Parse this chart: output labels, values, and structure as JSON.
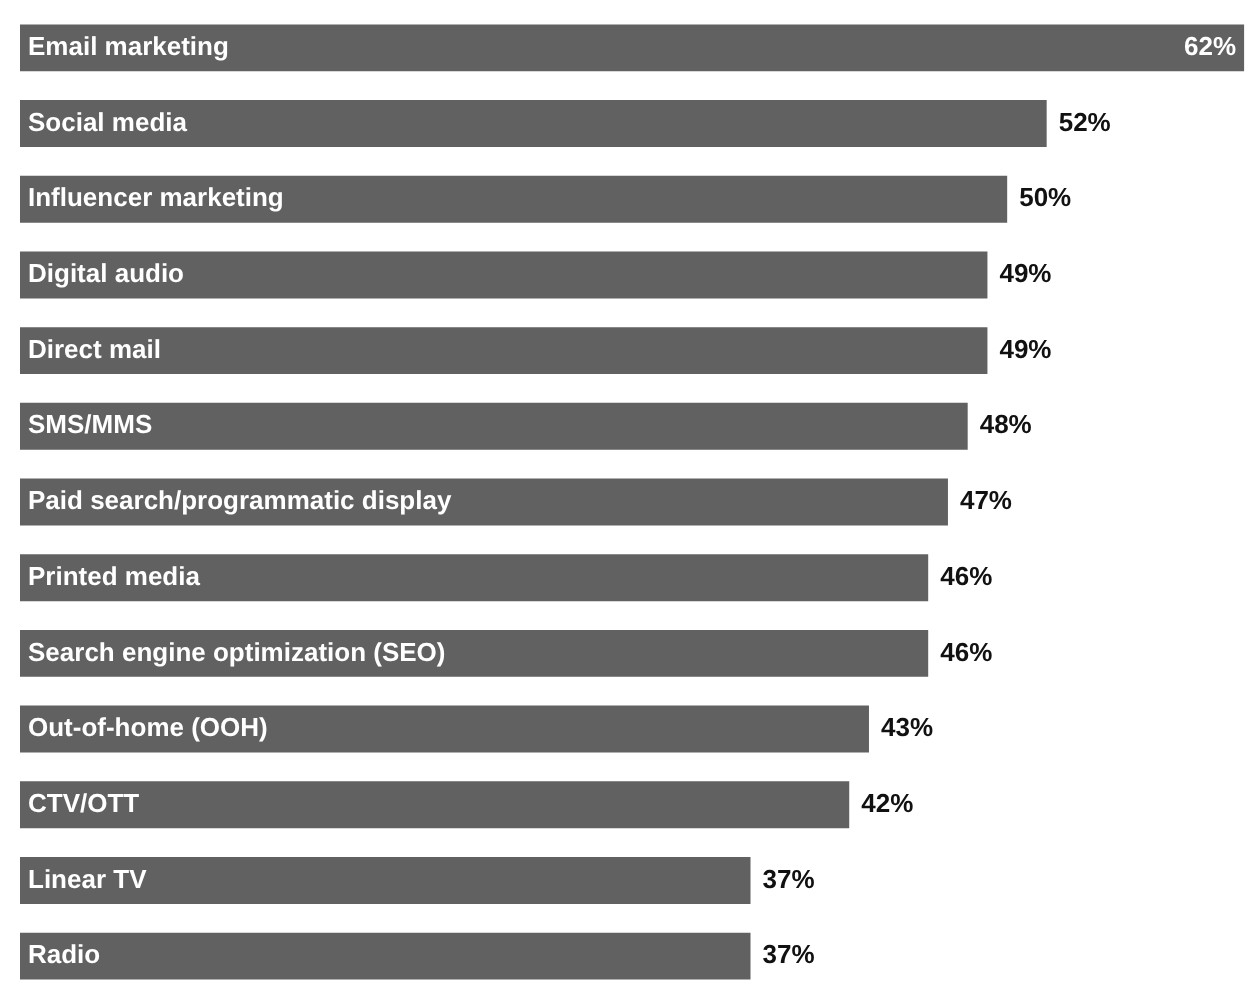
{
  "chart_data": {
    "type": "bar",
    "orientation": "horizontal",
    "categories": [
      "Email marketing",
      "Social media",
      "Influencer marketing",
      "Digital audio",
      "Direct mail",
      "SMS/MMS",
      "Paid search/programmatic display",
      "Printed media",
      "Search engine optimization (SEO)",
      "Out-of-home (OOH)",
      "CTV/OTT",
      "Linear TV",
      "Radio"
    ],
    "values": [
      62,
      52,
      50,
      49,
      49,
      48,
      47,
      46,
      46,
      43,
      42,
      37,
      37
    ],
    "value_labels": [
      "62%",
      "52%",
      "50%",
      "49%",
      "49%",
      "48%",
      "47%",
      "46%",
      "46%",
      "43%",
      "42%",
      "37%",
      "37%"
    ],
    "color": "#616161",
    "xlim": [
      0,
      62.4
    ],
    "legend": false
  }
}
